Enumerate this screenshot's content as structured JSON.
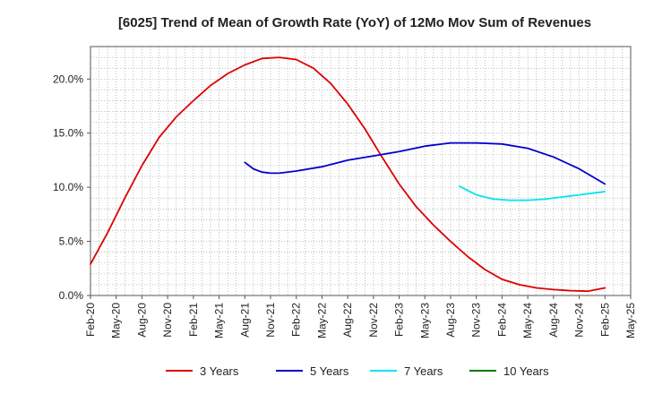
{
  "chart_data": {
    "type": "line",
    "title": "[6025]  Trend of Mean of Growth Rate (YoY) of 12Mo Mov Sum of Revenues",
    "xlabel": "",
    "ylabel": "",
    "grid": true,
    "legend_position": "bottom",
    "y_range": [
      0,
      23
    ],
    "y_ticks": [
      0,
      5,
      10,
      15,
      20
    ],
    "y_tick_labels": [
      "0.0%",
      "5.0%",
      "10.0%",
      "15.0%",
      "20.0%"
    ],
    "x_range": [
      0,
      63
    ],
    "x_ticks": [
      0,
      3,
      6,
      9,
      12,
      15,
      18,
      21,
      24,
      27,
      30,
      33,
      36,
      39,
      42,
      45,
      48,
      51,
      54,
      57,
      60,
      63
    ],
    "x_tick_labels": [
      "Feb-20",
      "May-20",
      "Aug-20",
      "Nov-20",
      "Feb-21",
      "May-21",
      "Aug-21",
      "Nov-21",
      "Feb-22",
      "May-22",
      "Aug-22",
      "Nov-22",
      "Feb-23",
      "May-23",
      "Aug-23",
      "Nov-23",
      "Feb-24",
      "May-24",
      "Aug-24",
      "Nov-24",
      "Feb-25",
      "May-25"
    ],
    "series": [
      {
        "name": "3 Years",
        "color": "#dd0000",
        "x": [
          0,
          2,
          4,
          6,
          8,
          10,
          12,
          14,
          16,
          18,
          20,
          22,
          24,
          26,
          28,
          30,
          32,
          34,
          36,
          38,
          40,
          42,
          44,
          46,
          48,
          50,
          52,
          54,
          56,
          58,
          60
        ],
        "values": [
          2.9,
          5.8,
          9.0,
          12.0,
          14.6,
          16.5,
          18.0,
          19.4,
          20.5,
          21.3,
          21.9,
          22.0,
          21.8,
          21.0,
          19.6,
          17.7,
          15.4,
          12.8,
          10.3,
          8.2,
          6.5,
          5.0,
          3.6,
          2.4,
          1.5,
          1.0,
          0.7,
          0.55,
          0.45,
          0.4,
          0.7
        ]
      },
      {
        "name": "5 Years",
        "color": "#0000cc",
        "x": [
          18,
          19,
          20,
          21,
          22,
          24,
          27,
          30,
          33,
          36,
          39,
          42,
          45,
          48,
          51,
          54,
          57,
          60
        ],
        "values": [
          12.3,
          11.7,
          11.4,
          11.3,
          11.3,
          11.5,
          11.9,
          12.5,
          12.9,
          13.3,
          13.8,
          14.1,
          14.1,
          14.0,
          13.6,
          12.8,
          11.7,
          10.3
        ]
      },
      {
        "name": "7 Years",
        "color": "#00e5ee",
        "x": [
          43,
          45,
          47,
          49,
          51,
          53,
          55,
          57,
          59,
          60
        ],
        "values": [
          10.1,
          9.3,
          8.9,
          8.8,
          8.8,
          8.9,
          9.1,
          9.3,
          9.5,
          9.6
        ]
      },
      {
        "name": "10 Years",
        "color": "#007700",
        "x": [],
        "values": []
      }
    ]
  }
}
